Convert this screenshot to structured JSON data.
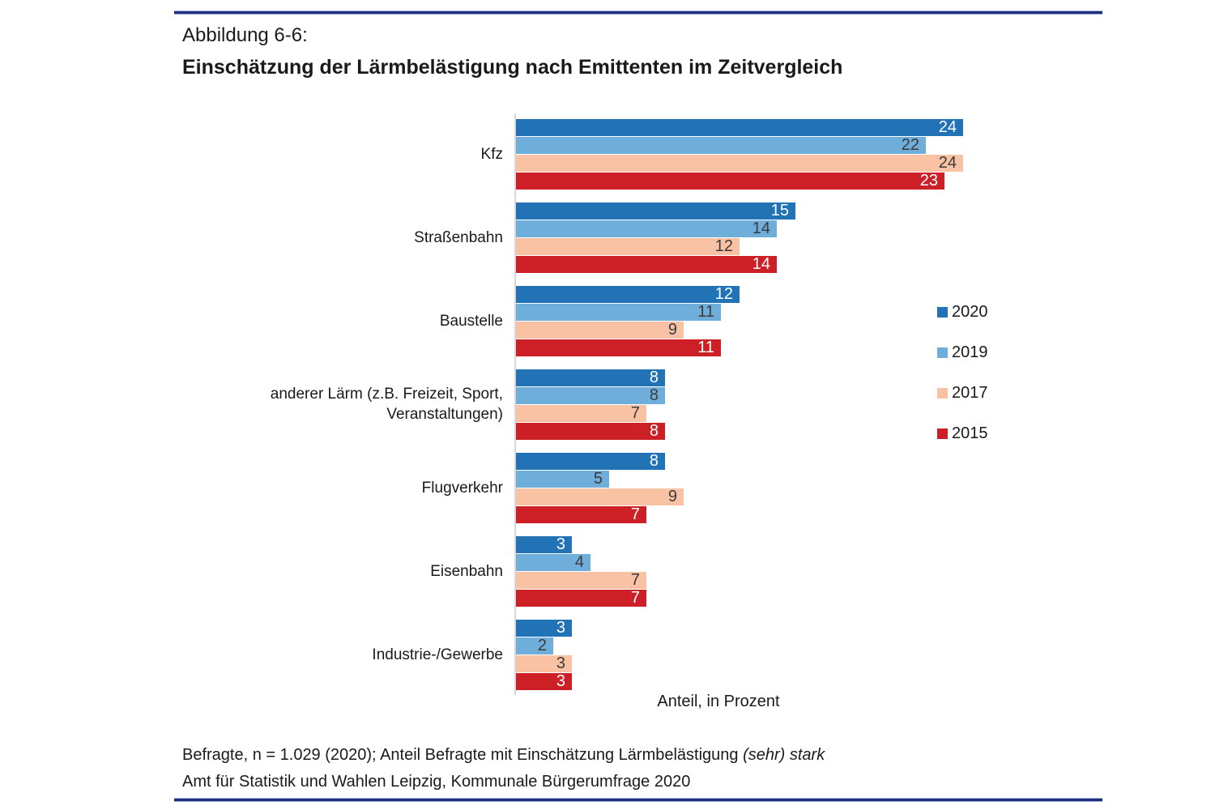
{
  "page": {
    "figure_label": "Abbildung 6-6:",
    "title": "Einschätzung der Lärmbelästigung nach Emittenten im Zeitvergleich",
    "footnote_line1_normal": "Befragte, n = 1.029 (2020); Anteil Befragte mit Einschätzung Lärmbelästigung ",
    "footnote_line1_italic": "(sehr) stark",
    "footnote_line2": "Amt für Statistik und Wahlen Leipzig, Kommunale Bürgerumfrage 2020",
    "accent_rule_color": "#202e80"
  },
  "chart_data": {
    "type": "bar",
    "orientation": "horizontal",
    "title": "Einschätzung der Lärmbelästigung nach Emittenten im Zeitvergleich",
    "xlabel": "Anteil, in Prozent",
    "ylabel": "",
    "xlim": [
      0,
      35
    ],
    "grid": false,
    "legend_position": "right",
    "value_labels": "inside-end",
    "axis_line_color": "#d8d8d8",
    "categories": [
      "Kfz",
      "Straßenbahn",
      "Baustelle",
      "anderer Lärm (z.B. Freizeit, Sport, Veranstaltungen)",
      "Flugverkehr",
      "Eisenbahn",
      "Industrie-/Gewerbe"
    ],
    "series": [
      {
        "name": "2020",
        "color": "#2272b6",
        "label_color": "#ffffff",
        "values": [
          24,
          15,
          12,
          8,
          8,
          3,
          3
        ]
      },
      {
        "name": "2019",
        "color": "#6faedb",
        "label_color": "#3a3a3a",
        "values": [
          22,
          14,
          11,
          8,
          5,
          4,
          2
        ]
      },
      {
        "name": "2017",
        "color": "#fac2a4",
        "label_color": "#3a3a3a",
        "values": [
          24,
          12,
          9,
          7,
          9,
          7,
          3
        ]
      },
      {
        "name": "2015",
        "color": "#cc2026",
        "label_color": "#ffffff",
        "values": [
          23,
          14,
          11,
          8,
          7,
          7,
          3
        ]
      }
    ]
  }
}
